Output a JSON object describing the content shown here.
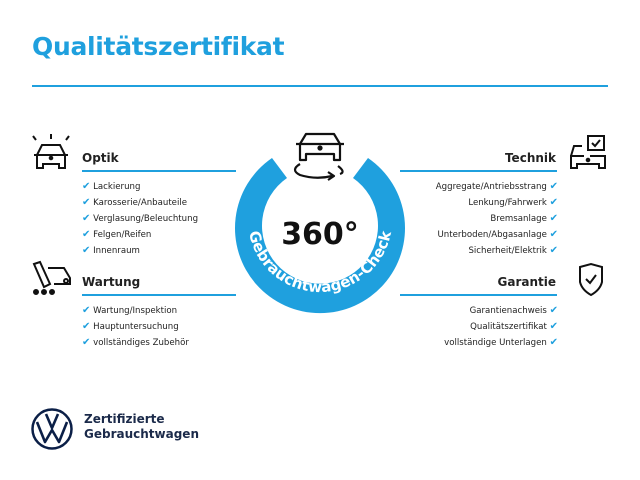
{
  "title": "Qualitätszertifikat",
  "accent_color": "#1fa0de",
  "center": {
    "big": "360°",
    "ring_text": "Gebrauchtwagen-Check"
  },
  "sections": {
    "optik": {
      "heading": "Optik",
      "icon": "car-lights-icon",
      "items": [
        "Lackierung",
        "Karosserie/Anbauteile",
        "Verglasung/Beleuchtung",
        "Felgen/Reifen",
        "Innenraum"
      ]
    },
    "wartung": {
      "heading": "Wartung",
      "icon": "maintenance-van-icon",
      "items": [
        "Wartung/Inspektion",
        "Hauptuntersuchung",
        "vollständiges Zubehör"
      ]
    },
    "technik": {
      "heading": "Technik",
      "icon": "car-checkbox-icon",
      "items": [
        "Aggregate/Antriebsstrang",
        "Lenkung/Fahrwerk",
        "Bremsanlage",
        "Unterboden/Abgasanlage",
        "Sicherheit/Elektrik"
      ]
    },
    "garantie": {
      "heading": "Garantie",
      "icon": "shield-check-icon",
      "items": [
        "Garantienachweis",
        "Qualitätszertifikat",
        "vollständige Unterlagen"
      ]
    }
  },
  "check_glyph": "✔",
  "footer": {
    "line1": "Zertifizierte",
    "line2": "Gebrauchtwagen",
    "logo": "VW"
  }
}
